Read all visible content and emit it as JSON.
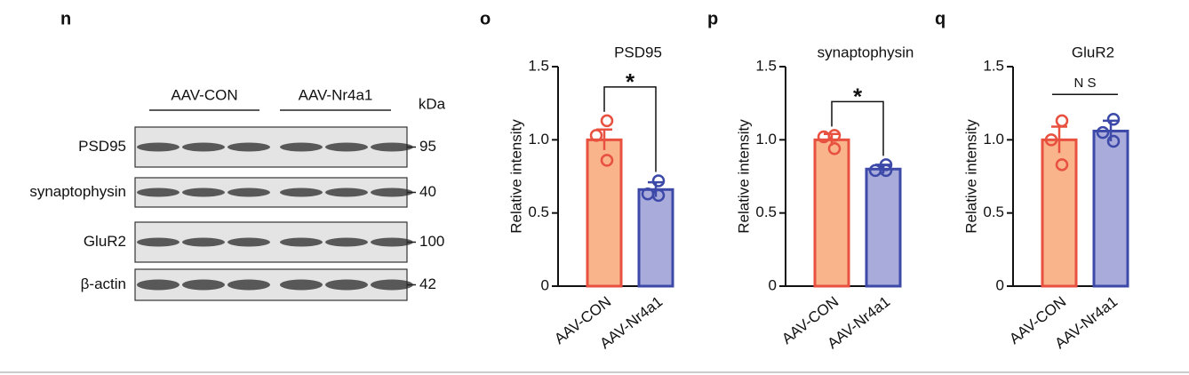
{
  "blot": {
    "panel_label": "n",
    "groups": [
      "AAV-CON",
      "AAV-Nr4a1"
    ],
    "unit": "kDa",
    "rows": [
      {
        "label": "PSD95",
        "kda": 95
      },
      {
        "label": "synaptophysin",
        "kda": 40
      },
      {
        "label": "GluR2",
        "kda": 100
      },
      {
        "label": "β-actin",
        "kda": 42
      }
    ]
  },
  "chart_data": [
    {
      "type": "bar",
      "panel_label": "o",
      "title": "PSD95",
      "y_label": "Relative intensity",
      "categories": [
        "AAV-CON",
        "AAV-Nr4a1"
      ],
      "values": [
        1.0,
        0.66
      ],
      "errors": [
        0.07,
        0.05
      ],
      "points": [
        [
          1.13,
          1.03,
          0.86
        ],
        [
          0.72,
          0.63,
          0.62
        ]
      ],
      "fill_colors": [
        "#f9b48c",
        "#a9abdb"
      ],
      "colors": [
        "#e8503f",
        "#3c49a8"
      ],
      "significance": "*",
      "ylim": [
        0,
        1.5
      ],
      "yticks": [
        0,
        0.5,
        {
          "value": 1,
          "label": "1.0"
        },
        1.5
      ]
    },
    {
      "type": "bar",
      "panel_label": "p",
      "title": "synaptophysin",
      "y_label": "Relative intensity",
      "categories": [
        "AAV-CON",
        "AAV-Nr4a1"
      ],
      "values": [
        1.0,
        0.8
      ],
      "errors": [
        0.04,
        0.03
      ],
      "points": [
        [
          1.03,
          1.02,
          0.94
        ],
        [
          0.83,
          0.79,
          0.79
        ]
      ],
      "fill_colors": [
        "#f9b48c",
        "#a9abdb"
      ],
      "colors": [
        "#e8503f",
        "#3c49a8"
      ],
      "significance": "*",
      "ylim": [
        0,
        1.5
      ],
      "yticks": [
        0,
        0.5,
        {
          "value": 1,
          "label": "1.0"
        },
        1.5
      ]
    },
    {
      "type": "bar",
      "panel_label": "q",
      "title": "GluR2",
      "y_label": "Relative intensity",
      "categories": [
        "AAV-CON",
        "AAV-Nr4a1"
      ],
      "values": [
        1.0,
        1.06
      ],
      "errors": [
        0.09,
        0.07
      ],
      "points": [
        [
          1.13,
          1.0,
          0.83
        ],
        [
          1.14,
          1.05,
          0.99
        ]
      ],
      "fill_colors": [
        "#f9b48c",
        "#a9abdb"
      ],
      "colors": [
        "#e8503f",
        "#3c49a8"
      ],
      "significance": "N S",
      "ylim": [
        0,
        1.5
      ],
      "yticks": [
        0,
        0.5,
        {
          "value": 1,
          "label": "1.0"
        },
        1.5
      ]
    }
  ]
}
